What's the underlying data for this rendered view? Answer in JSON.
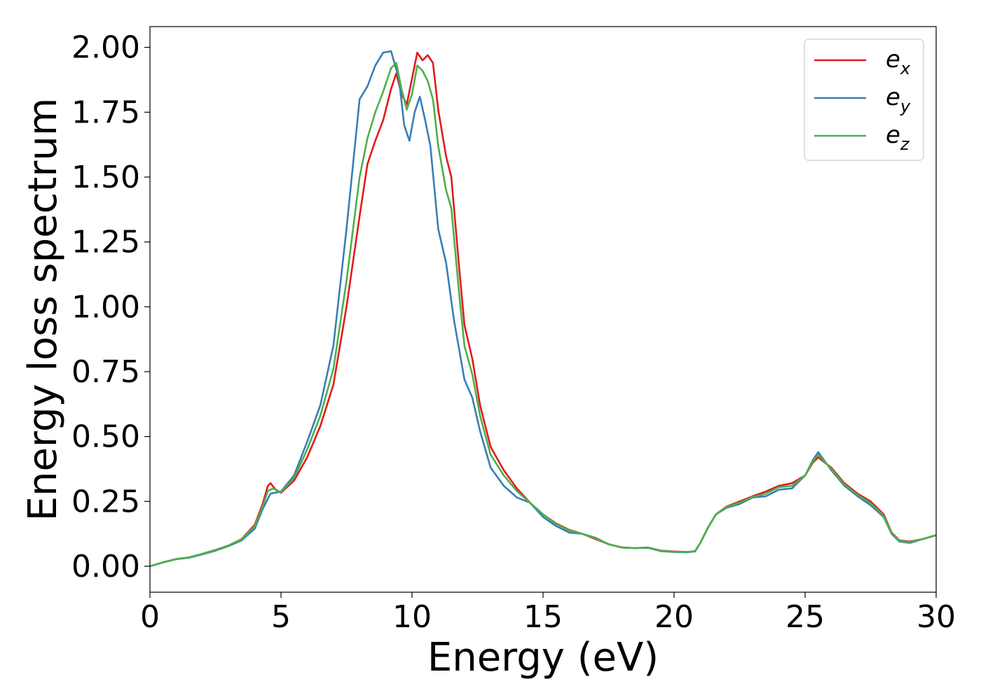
{
  "chart_data": {
    "type": "line",
    "title": "",
    "xlabel": "Energy (eV)",
    "ylabel": "Energy loss spectrum",
    "xlim": [
      0,
      30
    ],
    "ylim": [
      -0.1,
      2.08
    ],
    "xticks": [
      0,
      5,
      10,
      15,
      20,
      25,
      30
    ],
    "xtick_labels": [
      "0",
      "5",
      "10",
      "15",
      "20",
      "25",
      "30"
    ],
    "yticks": [
      0,
      0.25,
      0.5,
      0.75,
      1.0,
      1.25,
      1.5,
      1.75,
      2.0
    ],
    "ytick_labels": [
      "0.00",
      "0.25",
      "0.50",
      "0.75",
      "1.00",
      "1.25",
      "1.50",
      "1.75",
      "2.00"
    ],
    "grid": false,
    "legend_position": "top-right",
    "series": [
      {
        "name": "e",
        "subscript": "x",
        "color": "#e41a1c",
        "points": [
          [
            0,
            0
          ],
          [
            0.5,
            0.015
          ],
          [
            1,
            0.028
          ],
          [
            1.5,
            0.034
          ],
          [
            2,
            0.048
          ],
          [
            2.5,
            0.063
          ],
          [
            3,
            0.08
          ],
          [
            3.5,
            0.105
          ],
          [
            4,
            0.16
          ],
          [
            4.3,
            0.24
          ],
          [
            4.5,
            0.31
          ],
          [
            4.6,
            0.32
          ],
          [
            4.8,
            0.295
          ],
          [
            5,
            0.283
          ],
          [
            5.5,
            0.33
          ],
          [
            6,
            0.42
          ],
          [
            6.5,
            0.54
          ],
          [
            7,
            0.7
          ],
          [
            7.5,
            1.0
          ],
          [
            8,
            1.35
          ],
          [
            8.3,
            1.55
          ],
          [
            8.6,
            1.64
          ],
          [
            8.9,
            1.72
          ],
          [
            9.2,
            1.84
          ],
          [
            9.4,
            1.9
          ],
          [
            9.6,
            1.82
          ],
          [
            9.8,
            1.78
          ],
          [
            10,
            1.88
          ],
          [
            10.2,
            1.98
          ],
          [
            10.4,
            1.95
          ],
          [
            10.6,
            1.97
          ],
          [
            10.8,
            1.94
          ],
          [
            11,
            1.76
          ],
          [
            11.3,
            1.58
          ],
          [
            11.5,
            1.5
          ],
          [
            11.8,
            1.15
          ],
          [
            12,
            0.93
          ],
          [
            12.3,
            0.8
          ],
          [
            12.6,
            0.62
          ],
          [
            13,
            0.46
          ],
          [
            13.5,
            0.37
          ],
          [
            14,
            0.3
          ],
          [
            14.5,
            0.245
          ],
          [
            15,
            0.2
          ],
          [
            15.5,
            0.165
          ],
          [
            16,
            0.14
          ],
          [
            16.5,
            0.125
          ],
          [
            17,
            0.105
          ],
          [
            17.5,
            0.085
          ],
          [
            18,
            0.073
          ],
          [
            18.5,
            0.07
          ],
          [
            19,
            0.072
          ],
          [
            19.5,
            0.06
          ],
          [
            20,
            0.057
          ],
          [
            20.5,
            0.055
          ],
          [
            20.8,
            0.058
          ],
          [
            21,
            0.09
          ],
          [
            21.3,
            0.15
          ],
          [
            21.6,
            0.2
          ],
          [
            22,
            0.23
          ],
          [
            22.5,
            0.25
          ],
          [
            23,
            0.27
          ],
          [
            23.5,
            0.288
          ],
          [
            24,
            0.31
          ],
          [
            24.5,
            0.32
          ],
          [
            25,
            0.35
          ],
          [
            25.3,
            0.4
          ],
          [
            25.5,
            0.42
          ],
          [
            26,
            0.38
          ],
          [
            26.5,
            0.32
          ],
          [
            27,
            0.28
          ],
          [
            27.5,
            0.25
          ],
          [
            28,
            0.2
          ],
          [
            28.3,
            0.13
          ],
          [
            28.6,
            0.1
          ],
          [
            29,
            0.095
          ],
          [
            29.5,
            0.105
          ],
          [
            30,
            0.12
          ]
        ]
      },
      {
        "name": "e",
        "subscript": "y",
        "color": "#377eb8",
        "points": [
          [
            0,
            0
          ],
          [
            0.5,
            0.015
          ],
          [
            1,
            0.027
          ],
          [
            1.5,
            0.033
          ],
          [
            2,
            0.046
          ],
          [
            2.5,
            0.06
          ],
          [
            3,
            0.078
          ],
          [
            3.5,
            0.1
          ],
          [
            4,
            0.145
          ],
          [
            4.3,
            0.22
          ],
          [
            4.6,
            0.28
          ],
          [
            5,
            0.288
          ],
          [
            5.5,
            0.35
          ],
          [
            6,
            0.48
          ],
          [
            6.5,
            0.62
          ],
          [
            7,
            0.85
          ],
          [
            7.5,
            1.3
          ],
          [
            8,
            1.8
          ],
          [
            8.3,
            1.85
          ],
          [
            8.6,
            1.93
          ],
          [
            8.9,
            1.98
          ],
          [
            9.2,
            1.985
          ],
          [
            9.5,
            1.88
          ],
          [
            9.7,
            1.7
          ],
          [
            9.9,
            1.64
          ],
          [
            10.1,
            1.75
          ],
          [
            10.3,
            1.81
          ],
          [
            10.5,
            1.72
          ],
          [
            10.7,
            1.62
          ],
          [
            11,
            1.3
          ],
          [
            11.3,
            1.17
          ],
          [
            11.6,
            0.95
          ],
          [
            12,
            0.72
          ],
          [
            12.3,
            0.65
          ],
          [
            12.6,
            0.52
          ],
          [
            13,
            0.38
          ],
          [
            13.5,
            0.31
          ],
          [
            14,
            0.265
          ],
          [
            14.5,
            0.245
          ],
          [
            15,
            0.19
          ],
          [
            15.5,
            0.155
          ],
          [
            16,
            0.13
          ],
          [
            16.5,
            0.125
          ],
          [
            17,
            0.11
          ],
          [
            17.5,
            0.085
          ],
          [
            18,
            0.072
          ],
          [
            18.5,
            0.07
          ],
          [
            19,
            0.071
          ],
          [
            19.5,
            0.058
          ],
          [
            20,
            0.055
          ],
          [
            20.5,
            0.054
          ],
          [
            20.8,
            0.057
          ],
          [
            21,
            0.09
          ],
          [
            21.3,
            0.15
          ],
          [
            21.6,
            0.2
          ],
          [
            22,
            0.225
          ],
          [
            22.5,
            0.24
          ],
          [
            23,
            0.265
          ],
          [
            23.5,
            0.27
          ],
          [
            24,
            0.295
          ],
          [
            24.5,
            0.3
          ],
          [
            25,
            0.35
          ],
          [
            25.3,
            0.41
          ],
          [
            25.5,
            0.44
          ],
          [
            26,
            0.37
          ],
          [
            26.5,
            0.31
          ],
          [
            27,
            0.27
          ],
          [
            27.5,
            0.235
          ],
          [
            28,
            0.19
          ],
          [
            28.3,
            0.125
          ],
          [
            28.6,
            0.095
          ],
          [
            29,
            0.09
          ],
          [
            29.5,
            0.105
          ],
          [
            30,
            0.12
          ]
        ]
      },
      {
        "name": "e",
        "subscript": "z",
        "color": "#4daf4a",
        "points": [
          [
            0,
            0
          ],
          [
            0.5,
            0.015
          ],
          [
            1,
            0.028
          ],
          [
            1.5,
            0.034
          ],
          [
            2,
            0.048
          ],
          [
            2.5,
            0.062
          ],
          [
            3,
            0.08
          ],
          [
            3.5,
            0.104
          ],
          [
            4,
            0.155
          ],
          [
            4.3,
            0.23
          ],
          [
            4.5,
            0.29
          ],
          [
            4.7,
            0.3
          ],
          [
            5,
            0.285
          ],
          [
            5.5,
            0.34
          ],
          [
            6,
            0.45
          ],
          [
            6.5,
            0.58
          ],
          [
            7,
            0.76
          ],
          [
            7.5,
            1.1
          ],
          [
            8,
            1.5
          ],
          [
            8.3,
            1.65
          ],
          [
            8.6,
            1.75
          ],
          [
            8.9,
            1.83
          ],
          [
            9.2,
            1.92
          ],
          [
            9.4,
            1.94
          ],
          [
            9.6,
            1.84
          ],
          [
            9.8,
            1.76
          ],
          [
            10,
            1.82
          ],
          [
            10.2,
            1.93
          ],
          [
            10.4,
            1.91
          ],
          [
            10.6,
            1.87
          ],
          [
            10.8,
            1.8
          ],
          [
            11,
            1.62
          ],
          [
            11.3,
            1.45
          ],
          [
            11.5,
            1.38
          ],
          [
            11.8,
            1.05
          ],
          [
            12,
            0.85
          ],
          [
            12.3,
            0.74
          ],
          [
            12.6,
            0.58
          ],
          [
            13,
            0.43
          ],
          [
            13.5,
            0.35
          ],
          [
            14,
            0.29
          ],
          [
            14.5,
            0.245
          ],
          [
            15,
            0.2
          ],
          [
            15.5,
            0.163
          ],
          [
            16,
            0.138
          ],
          [
            16.5,
            0.125
          ],
          [
            17,
            0.108
          ],
          [
            17.5,
            0.085
          ],
          [
            18,
            0.072
          ],
          [
            18.5,
            0.07
          ],
          [
            19,
            0.072
          ],
          [
            19.5,
            0.059
          ],
          [
            20,
            0.056
          ],
          [
            20.5,
            0.055
          ],
          [
            20.8,
            0.058
          ],
          [
            21,
            0.09
          ],
          [
            21.3,
            0.15
          ],
          [
            21.6,
            0.2
          ],
          [
            22,
            0.228
          ],
          [
            22.5,
            0.245
          ],
          [
            23,
            0.267
          ],
          [
            23.5,
            0.28
          ],
          [
            24,
            0.305
          ],
          [
            24.5,
            0.31
          ],
          [
            25,
            0.35
          ],
          [
            25.3,
            0.405
          ],
          [
            25.5,
            0.43
          ],
          [
            26,
            0.375
          ],
          [
            26.5,
            0.315
          ],
          [
            27,
            0.275
          ],
          [
            27.5,
            0.243
          ],
          [
            28,
            0.195
          ],
          [
            28.3,
            0.128
          ],
          [
            28.6,
            0.098
          ],
          [
            29,
            0.093
          ],
          [
            29.5,
            0.105
          ],
          [
            30,
            0.12
          ]
        ]
      }
    ]
  }
}
